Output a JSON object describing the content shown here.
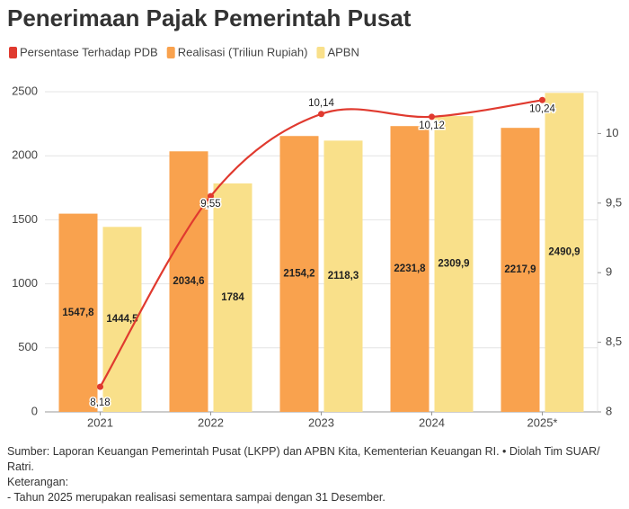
{
  "chart_data": {
    "type": "bar",
    "title": "Penerimaan Pajak Pemerintah Pusat",
    "categories": [
      "2021",
      "2022",
      "2023",
      "2024",
      "2025*"
    ],
    "series": [
      {
        "name": "Persentase Terhadap PDB",
        "type": "line",
        "axis": "y2",
        "color": "#e03a2f",
        "values": [
          8.18,
          9.55,
          10.14,
          10.12,
          10.24
        ],
        "value_labels": [
          "8,18",
          "9,55",
          "10,14",
          "10,12",
          "10,24"
        ]
      },
      {
        "name": "Realisasi (Triliun Rupiah)",
        "color": "#f9a24e",
        "values": [
          1547.8,
          2034.6,
          2154.2,
          2231.8,
          2217.9
        ],
        "value_labels": [
          "1547,8",
          "2034,6",
          "2154,2",
          "2231,8",
          "2217,9"
        ]
      },
      {
        "name": "APBN",
        "color": "#f9e08a",
        "values": [
          1444.5,
          1784,
          2118.3,
          2309.9,
          2490.9
        ],
        "value_labels": [
          "1444,5",
          "1784",
          "2118,3",
          "2309,9",
          "2490,9"
        ]
      }
    ],
    "ylim": [
      0,
      2500
    ],
    "yticks": [
      0,
      500,
      1000,
      1500,
      2000,
      2500
    ],
    "y2lim": [
      8,
      10.3
    ],
    "y2ticks": [
      8,
      {
        "value": 8.5,
        "label": "8,5"
      },
      9,
      {
        "value": 9.5,
        "label": "9,5"
      },
      10
    ],
    "grid": true
  },
  "footer": {
    "source": "Sumber: Laporan Keuangan Pemerintah Pusat (LKPP) dan APBN Kita, Kementerian Keuangan RI. • Diolah Tim SUAR/ Ratri.",
    "notes_title": "Keterangan:",
    "notes": [
      "- Tahun 2025 merupakan realisasi sementara sampai dengan 31 Desember."
    ]
  }
}
